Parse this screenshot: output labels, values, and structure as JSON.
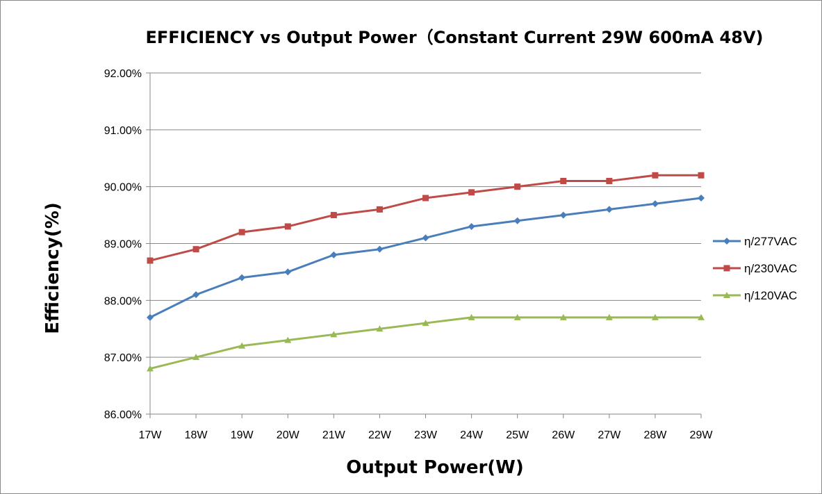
{
  "chart_data": {
    "type": "line",
    "title": "EFFICIENCY vs Output Power（Constant Current 29W 600mA 48V)",
    "xlabel": "Output Power(W)",
    "ylabel": "Efficiency(%)",
    "categories": [
      "17W",
      "18W",
      "19W",
      "20W",
      "21W",
      "22W",
      "23W",
      "24W",
      "25W",
      "26W",
      "27W",
      "28W",
      "29W"
    ],
    "ylim": [
      86.0,
      92.0
    ],
    "yticks": [
      86,
      87,
      88,
      89,
      90,
      91,
      92
    ],
    "ytick_labels": [
      "86.00%",
      "87.00%",
      "88.00%",
      "89.00%",
      "90.00%",
      "91.00%",
      "92.00%"
    ],
    "grid": "horizontal",
    "legend_position": "right",
    "series": [
      {
        "name": "η/277VAC",
        "color": "#4a7ebb",
        "marker": "diamond",
        "values": [
          87.7,
          88.1,
          88.4,
          88.5,
          88.8,
          88.9,
          89.1,
          89.3,
          89.4,
          89.5,
          89.6,
          89.7,
          89.8
        ]
      },
      {
        "name": "η/230VAC",
        "color": "#be4b48",
        "marker": "square",
        "values": [
          88.7,
          88.9,
          89.2,
          89.3,
          89.5,
          89.6,
          89.8,
          89.9,
          90.0,
          90.1,
          90.1,
          90.2,
          90.2
        ]
      },
      {
        "name": "η/120VAC",
        "color": "#98b954",
        "marker": "triangle",
        "values": [
          86.8,
          87.0,
          87.2,
          87.3,
          87.4,
          87.5,
          87.6,
          87.7,
          87.7,
          87.7,
          87.7,
          87.7,
          87.7
        ]
      }
    ]
  }
}
